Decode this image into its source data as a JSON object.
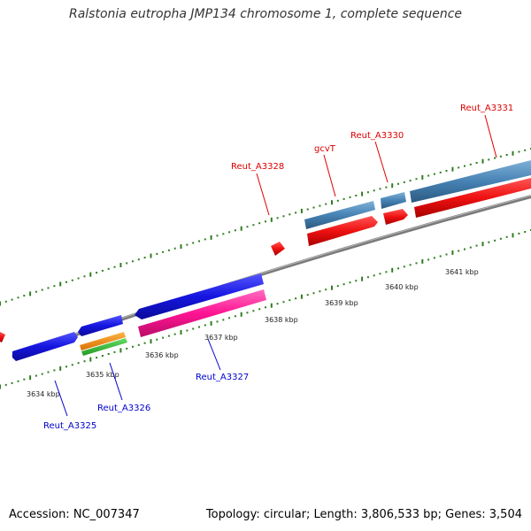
{
  "title": "Ralstonia eutropha JMP134 chromosome 1, complete sequence",
  "footer": {
    "accession": "Accession: NC_007347",
    "stats": "Topology: circular; Length: 3,806,533 bp; Genes: 3,504"
  },
  "colors": {
    "backbone": "#7a7a7a",
    "tick": "#2e7d1e",
    "label_top": "#dd0000",
    "label_bottom": "#0000cc",
    "gene_blue": "#1515e0",
    "gene_steel": "#4682b4",
    "gene_red": "#ee1111",
    "gene_pink": "#ff1493",
    "gene_orange": "#ff8c00",
    "gene_green": "#33bb33"
  },
  "kbp_labels": [
    "3634 kbp",
    "3635 kbp",
    "3636 kbp",
    "3637 kbp",
    "3638 kbp",
    "3639 kbp",
    "3640 kbp",
    "3641 kbp"
  ],
  "gene_labels": {
    "reut_a3331": "Reut_A3331",
    "reut_a3330": "Reut_A3330",
    "gcvt": "gcvT",
    "reut_a3328": "Reut_A3328",
    "reut_a3327": "Reut_A3327",
    "reut_a3326": "Reut_A3326",
    "reut_a3325": "Reut_A3325"
  }
}
